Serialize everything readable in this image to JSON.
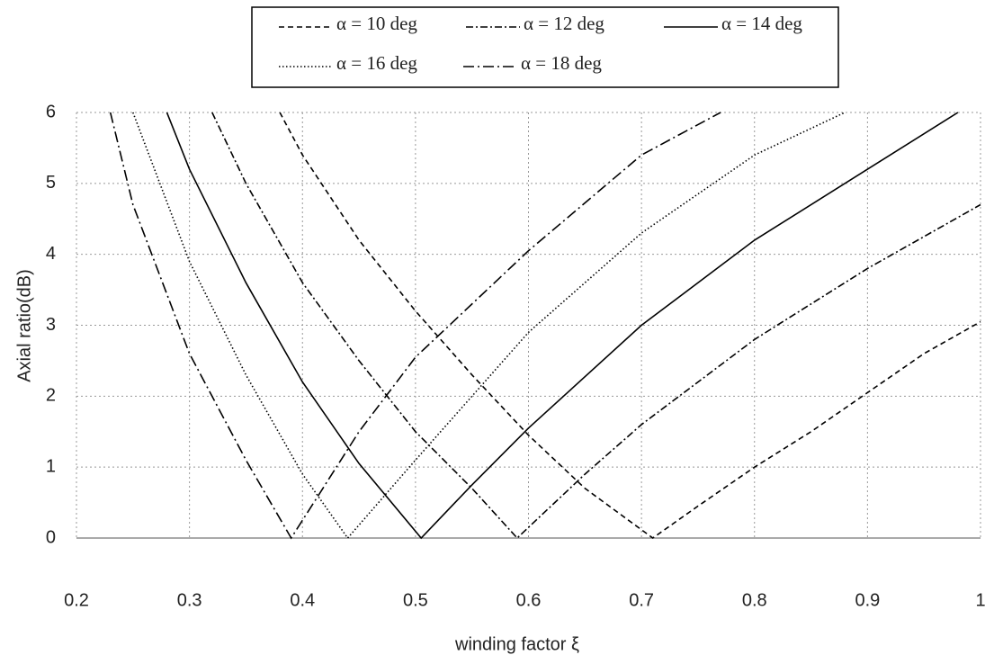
{
  "chart_data": {
    "type": "line",
    "x_label": "winding factor ξ",
    "y_label": "Axial ratio(dB)",
    "xlim": [
      0.2,
      1
    ],
    "xticks": [
      0.2,
      0.3,
      0.4,
      0.5,
      0.6,
      0.7,
      0.8,
      0.9,
      1
    ],
    "ylim": [
      0,
      6
    ],
    "yticks": [
      0,
      1,
      2,
      3,
      4,
      5,
      6
    ],
    "grid": true,
    "series": [
      {
        "name": "α = 10 deg",
        "color": "#000",
        "dash": "6,4",
        "x": [
          0.38,
          0.4,
          0.45,
          0.5,
          0.55,
          0.6,
          0.65,
          0.71,
          0.75,
          0.8,
          0.85,
          0.9,
          0.95,
          1.0
        ],
        "values": [
          6,
          5.4,
          4.2,
          3.2,
          2.3,
          1.45,
          0.7,
          0,
          0.45,
          1.0,
          1.5,
          2.05,
          2.6,
          3.05
        ]
      },
      {
        "name": "α = 12 deg",
        "color": "#000",
        "dash": "8,3,2,3",
        "x": [
          0.32,
          0.35,
          0.4,
          0.45,
          0.5,
          0.55,
          0.59,
          0.65,
          0.7,
          0.8,
          0.9,
          1.0
        ],
        "values": [
          6,
          5.0,
          3.6,
          2.5,
          1.5,
          0.7,
          0,
          0.9,
          1.6,
          2.8,
          3.8,
          4.7
        ]
      },
      {
        "name": "α = 14 deg",
        "color": "#000",
        "dash": "none",
        "x": [
          0.28,
          0.3,
          0.35,
          0.4,
          0.45,
          0.505,
          0.55,
          0.6,
          0.7,
          0.8,
          0.9,
          0.98
        ],
        "values": [
          6,
          5.2,
          3.6,
          2.2,
          1.05,
          0,
          0.75,
          1.55,
          3.0,
          4.2,
          5.2,
          6
        ]
      },
      {
        "name": "α = 16 deg",
        "color": "#000",
        "dash": "1.5,2.5",
        "x": [
          0.25,
          0.3,
          0.35,
          0.4,
          0.44,
          0.5,
          0.6,
          0.7,
          0.8,
          0.88
        ],
        "values": [
          6,
          3.9,
          2.3,
          0.9,
          0,
          1.1,
          2.9,
          4.3,
          5.4,
          6
        ]
      },
      {
        "name": "α = 18 deg",
        "color": "#000",
        "dash": "12,4,2,4",
        "x": [
          0.23,
          0.25,
          0.3,
          0.35,
          0.39,
          0.45,
          0.5,
          0.6,
          0.7,
          0.77
        ],
        "values": [
          6,
          4.7,
          2.6,
          1.1,
          0,
          1.5,
          2.55,
          4.05,
          5.4,
          6
        ]
      }
    ]
  }
}
